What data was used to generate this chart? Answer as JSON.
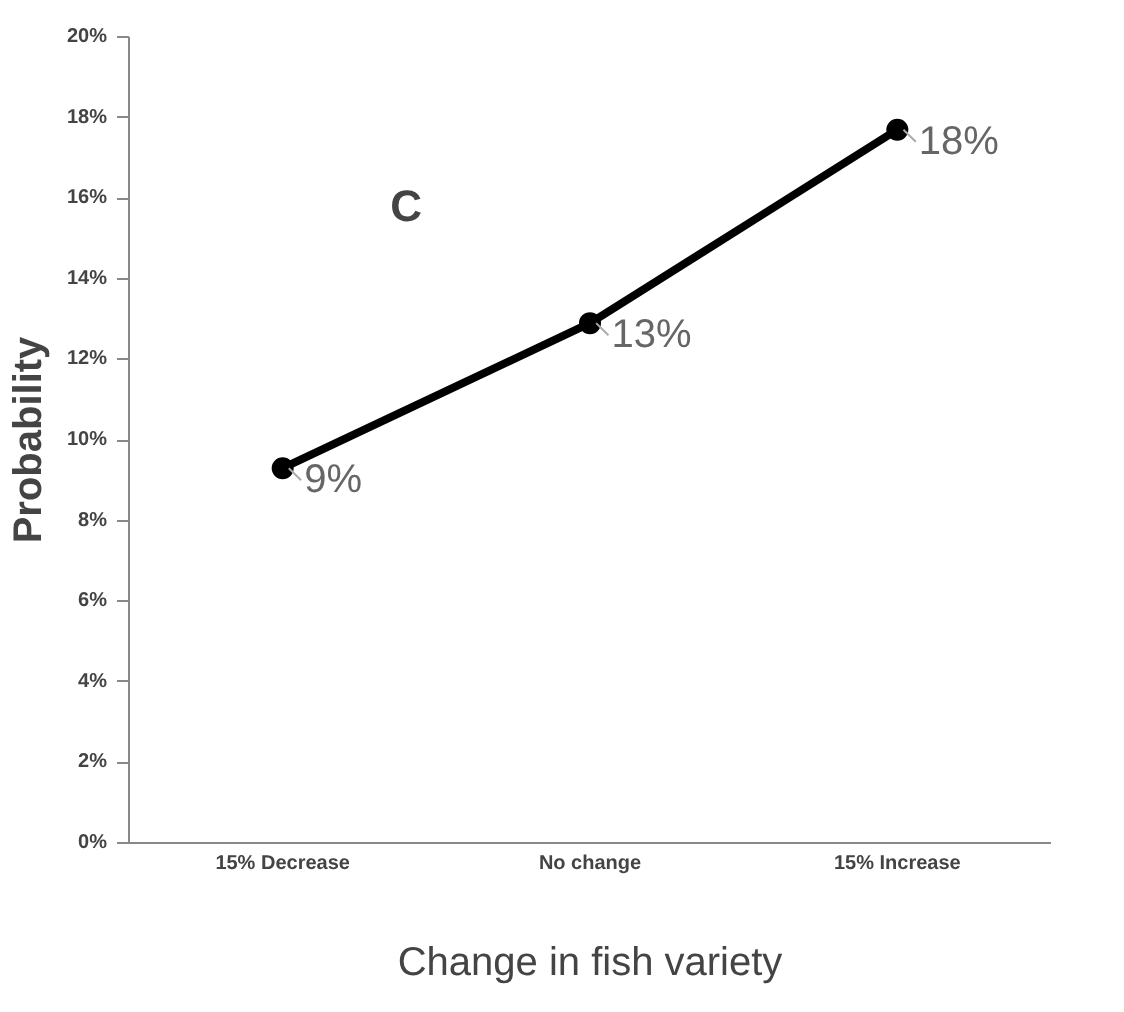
{
  "chart_data": {
    "type": "line",
    "xlabel": "Change in fish variety",
    "ylabel": "Probability",
    "categories": [
      "15% Decrease",
      "No change",
      "15% Increase"
    ],
    "values": [
      9.3,
      12.9,
      17.7
    ],
    "value_labels": [
      "9%",
      "13%",
      "18%"
    ],
    "color": "#000000",
    "marker": "circle",
    "line_style": "solid",
    "grid": false,
    "ylim": [
      0,
      20
    ],
    "yticks": [
      {
        "value": 0,
        "label": "0%"
      },
      {
        "value": 2,
        "label": "2%"
      },
      {
        "value": 4,
        "label": "4%"
      },
      {
        "value": 6,
        "label": "6%"
      },
      {
        "value": 8,
        "label": "8%"
      },
      {
        "value": 10,
        "label": "10%"
      },
      {
        "value": 12,
        "label": "12%"
      },
      {
        "value": 14,
        "label": "14%"
      },
      {
        "value": 16,
        "label": "16%"
      },
      {
        "value": 18,
        "label": "18%"
      },
      {
        "value": 20,
        "label": "20%"
      }
    ],
    "annotations": [
      "C"
    ]
  }
}
